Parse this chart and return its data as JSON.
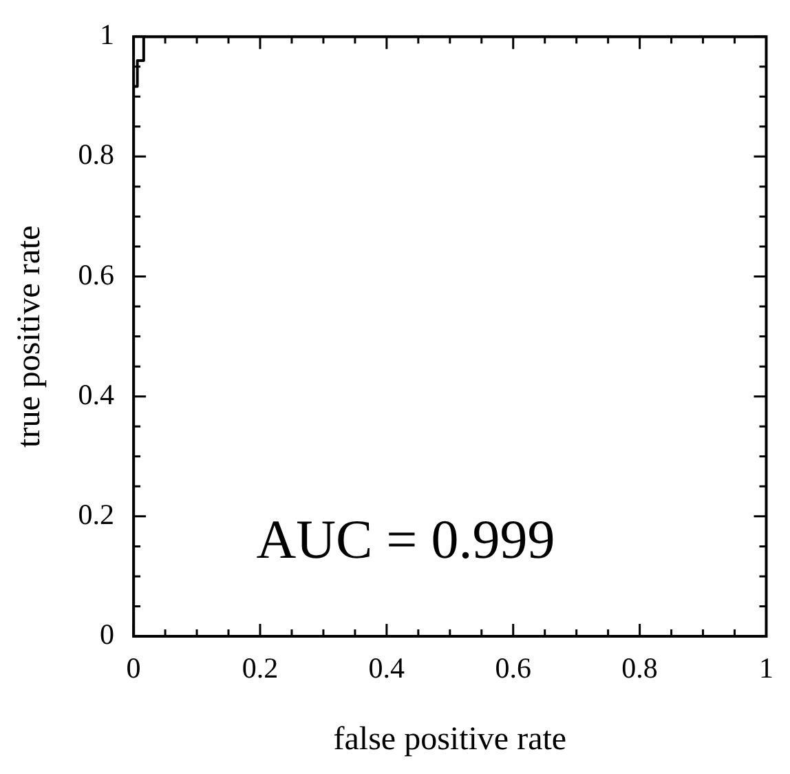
{
  "chart_data": {
    "type": "line",
    "xlabel": "false positive rate",
    "ylabel": "true positive rate",
    "x": [
      0,
      0,
      0.006,
      0.006,
      0.016,
      0.016,
      1
    ],
    "series": [
      {
        "color": "#000000",
        "values": [
          0,
          0.917,
          0.917,
          0.96,
          0.96,
          1,
          1
        ]
      }
    ],
    "xlim": [
      0,
      1
    ],
    "ylim": [
      0,
      1
    ],
    "xticks": [
      0,
      {
        "value": 0.05,
        "label": null
      },
      {
        "value": 0.1,
        "label": null
      },
      {
        "value": 0.15,
        "label": null
      },
      0.2,
      {
        "value": 0.25,
        "label": null
      },
      {
        "value": 0.3,
        "label": null
      },
      {
        "value": 0.35,
        "label": null
      },
      0.4,
      {
        "value": 0.45,
        "label": null
      },
      {
        "value": 0.5,
        "label": null
      },
      {
        "value": 0.55,
        "label": null
      },
      0.6,
      {
        "value": 0.65,
        "label": null
      },
      {
        "value": 0.7,
        "label": null
      },
      {
        "value": 0.75,
        "label": null
      },
      0.8,
      {
        "value": 0.85,
        "label": null
      },
      {
        "value": 0.9,
        "label": null
      },
      {
        "value": 0.95,
        "label": null
      },
      1
    ],
    "yticks": [
      0,
      {
        "value": 0.05,
        "label": null
      },
      {
        "value": 0.1,
        "label": null
      },
      {
        "value": 0.15,
        "label": null
      },
      0.2,
      {
        "value": 0.25,
        "label": null
      },
      {
        "value": 0.3,
        "label": null
      },
      {
        "value": 0.35,
        "label": null
      },
      0.4,
      {
        "value": 0.45,
        "label": null
      },
      {
        "value": 0.5,
        "label": null
      },
      {
        "value": 0.55,
        "label": null
      },
      0.6,
      {
        "value": 0.65,
        "label": null
      },
      {
        "value": 0.7,
        "label": null
      },
      {
        "value": 0.75,
        "label": null
      },
      0.8,
      {
        "value": 0.85,
        "label": null
      },
      {
        "value": 0.9,
        "label": null
      },
      {
        "value": 0.95,
        "label": null
      },
      1
    ],
    "annotations": [
      "AUC = 0.999"
    ],
    "grid": false,
    "legend": false,
    "marker": "none",
    "line_style": "solid"
  }
}
